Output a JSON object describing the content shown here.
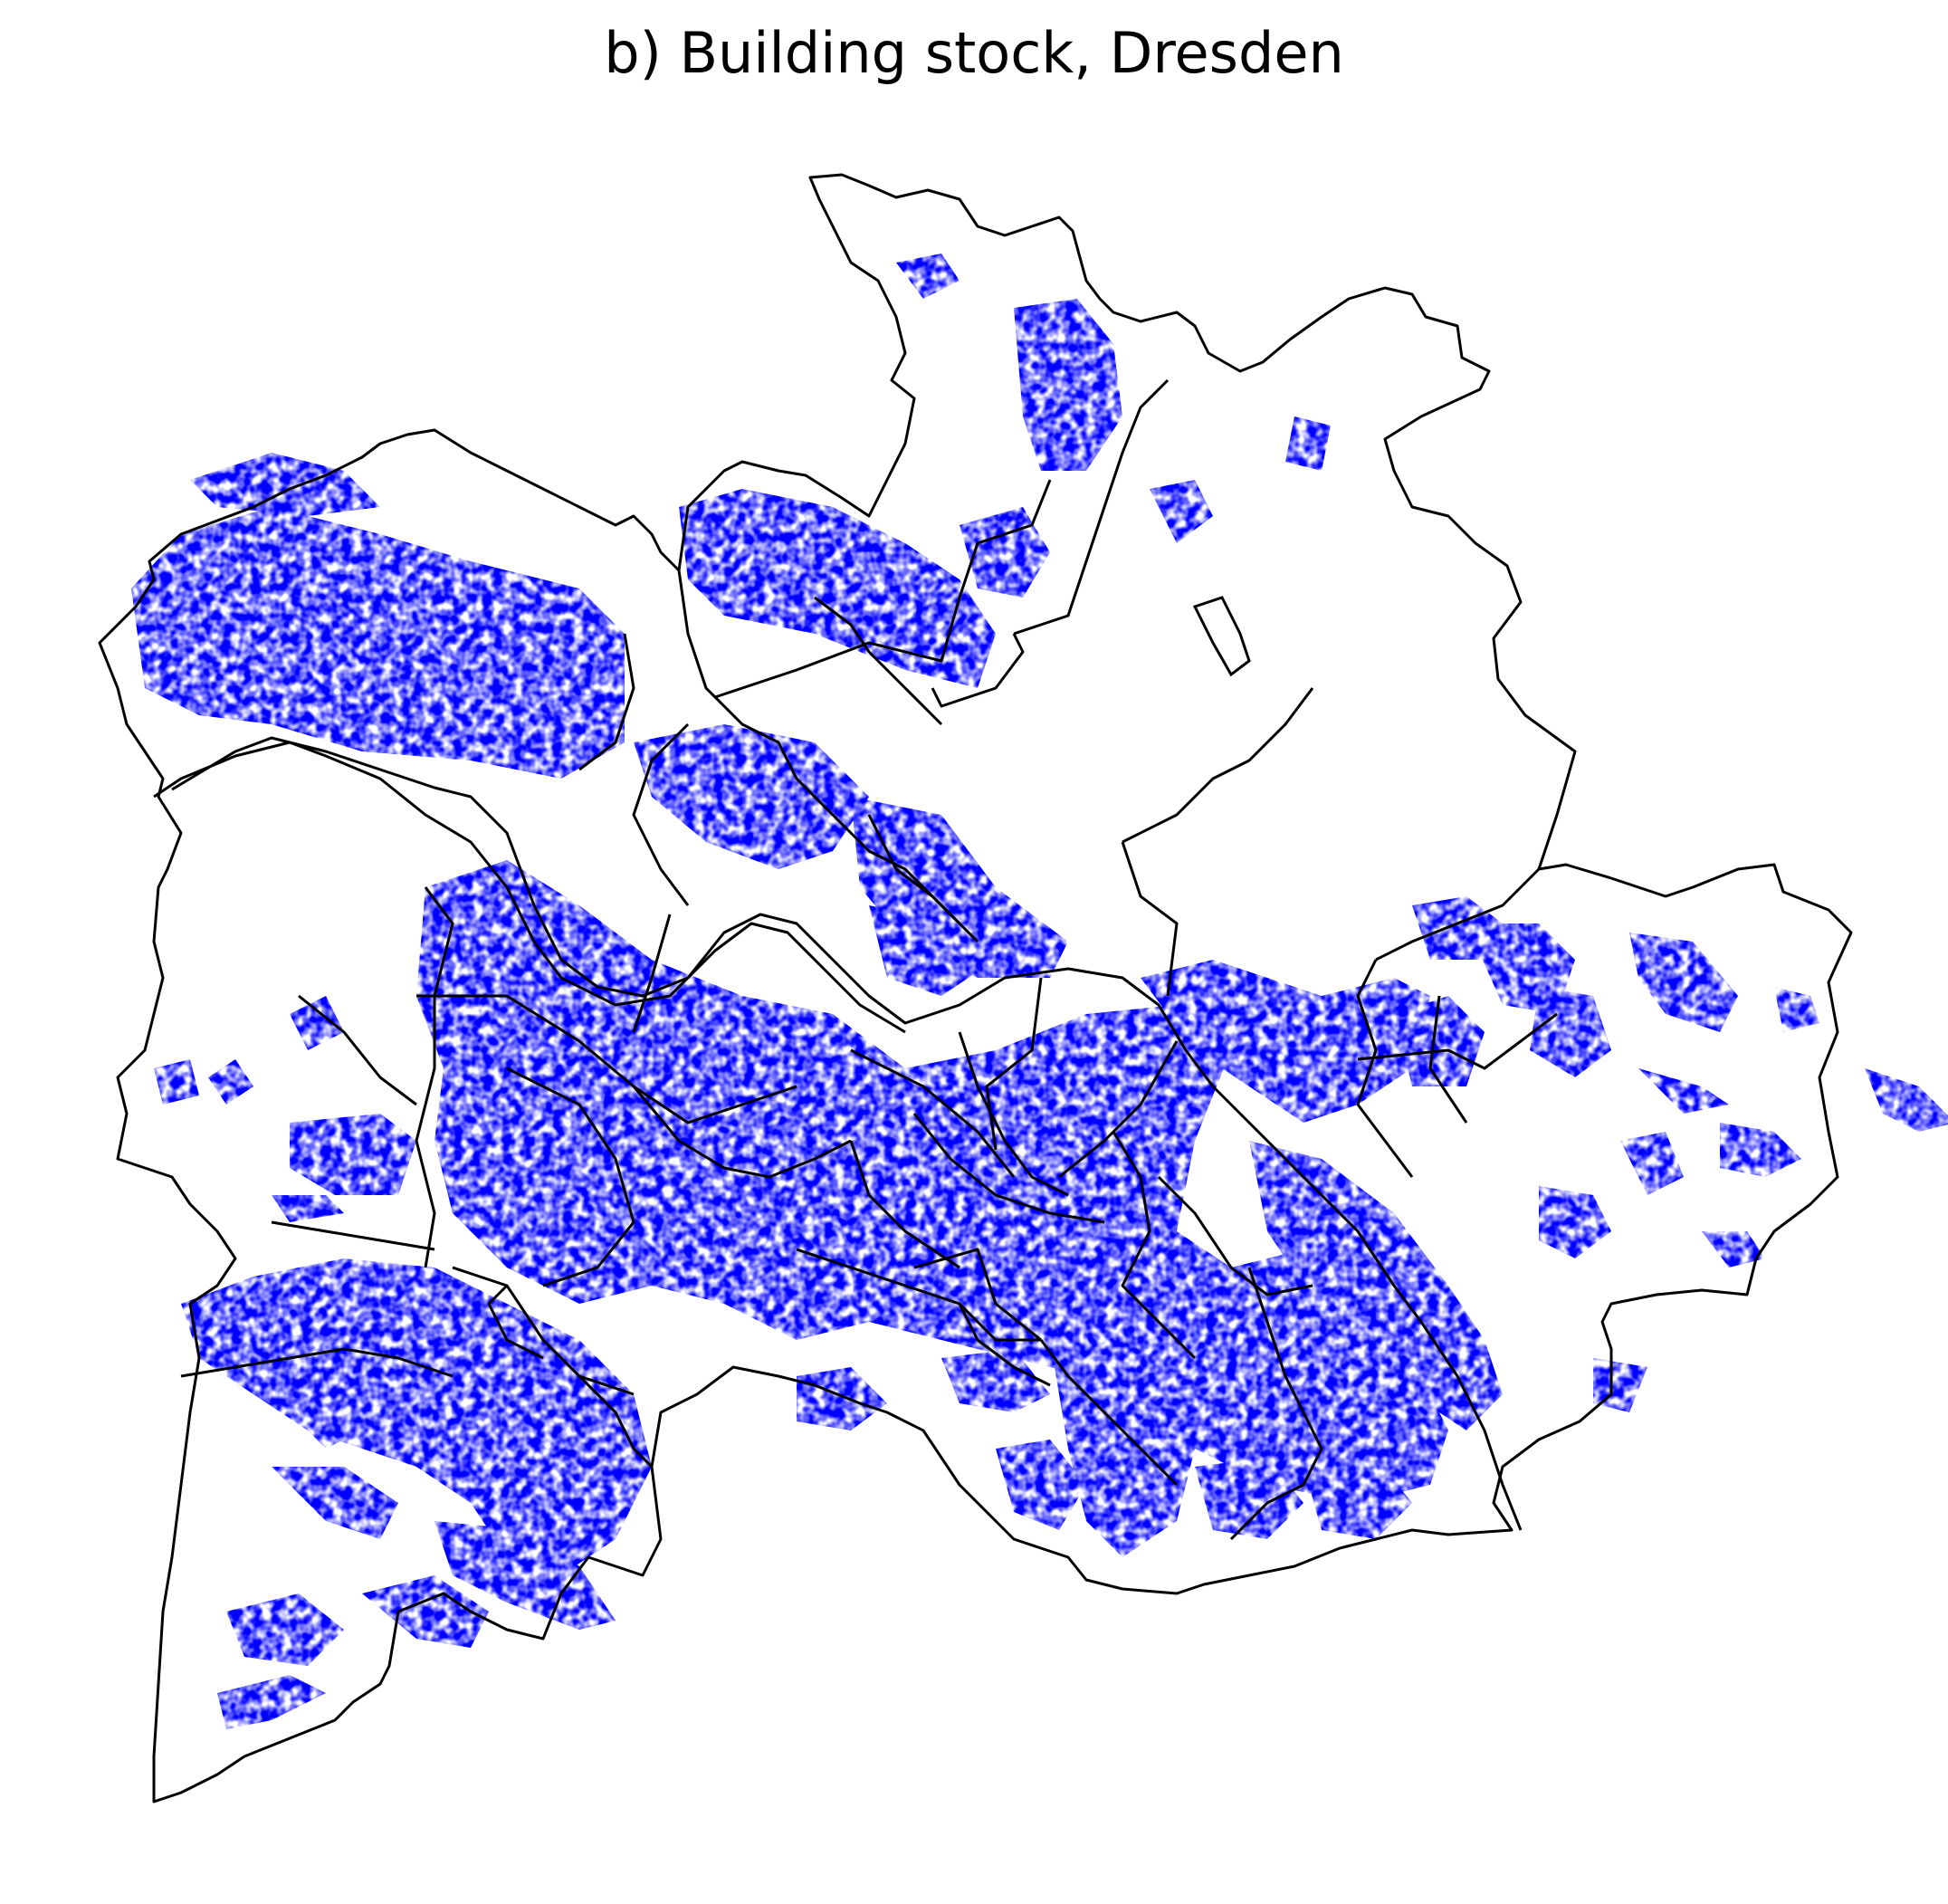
{
  "title": "b) Building stock, Dresden",
  "colors": {
    "background": "#ffffff",
    "building_fill": "#0000ff",
    "boundary_stroke": "#000000"
  },
  "map_layers": [
    "district-boundaries",
    "building-footprints",
    "elbe-river"
  ]
}
